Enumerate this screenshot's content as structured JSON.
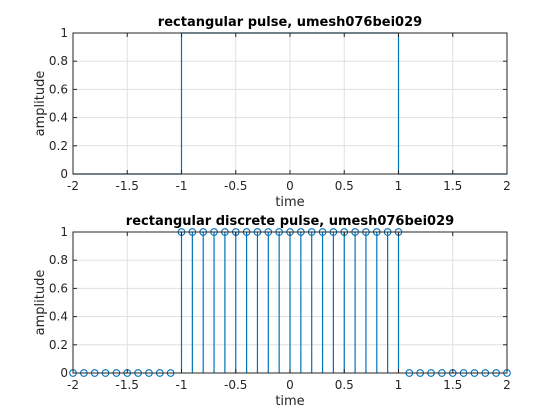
{
  "chart_data": [
    {
      "type": "line",
      "title": "rectangular pulse, umesh076bei029",
      "xlabel": "time",
      "ylabel": "amplitude",
      "xlim": [
        -2,
        2
      ],
      "ylim": [
        0,
        1
      ],
      "grid": true,
      "xticks": [
        -2,
        -1.5,
        -1,
        -0.5,
        0,
        0.5,
        1,
        1.5,
        2
      ],
      "xtick_labels": [
        "-2",
        "-1.5",
        "-1",
        "-0.5",
        "0",
        "0.5",
        "1",
        "1.5",
        "2"
      ],
      "yticks": [
        0,
        0.2,
        0.4,
        0.6,
        0.8,
        1
      ],
      "ytick_labels": [
        "0",
        "0.2",
        "0.4",
        "0.6",
        "0.8",
        "1"
      ],
      "color": "#0072bd",
      "series": [
        {
          "x": [
            -2,
            -1,
            -1,
            1,
            1,
            2
          ],
          "y": [
            0,
            0,
            1,
            1,
            0,
            0
          ]
        }
      ]
    },
    {
      "type": "stem",
      "title": "rectangular discrete pulse, umesh076bei029",
      "xlabel": "time",
      "ylabel": "amplitude",
      "xlim": [
        -2,
        2
      ],
      "ylim": [
        0,
        1
      ],
      "grid": true,
      "xticks": [
        -2,
        -1.5,
        -1,
        -0.5,
        0,
        0.5,
        1,
        1.5,
        2
      ],
      "xtick_labels": [
        "-2",
        "-1.5",
        "-1",
        "-0.5",
        "0",
        "0.5",
        "1",
        "1.5",
        "2"
      ],
      "yticks": [
        0,
        0.2,
        0.4,
        0.6,
        0.8,
        1
      ],
      "ytick_labels": [
        "0",
        "0.2",
        "0.4",
        "0.6",
        "0.8",
        "1"
      ],
      "color": "#0072bd",
      "marker": "circle",
      "series": [
        {
          "x": [
            -2,
            -1.9,
            -1.8,
            -1.7,
            -1.6,
            -1.5,
            -1.4,
            -1.3,
            -1.2,
            -1.1,
            -1,
            -0.9,
            -0.8,
            -0.7,
            -0.6,
            -0.5,
            -0.4,
            -0.3,
            -0.2,
            -0.1,
            0,
            0.1,
            0.2,
            0.3,
            0.4,
            0.5,
            0.6,
            0.7,
            0.8,
            0.9,
            1,
            1.1,
            1.2,
            1.3,
            1.4,
            1.5,
            1.6,
            1.7,
            1.8,
            1.9,
            2
          ],
          "y": [
            0,
            0,
            0,
            0,
            0,
            0,
            0,
            0,
            0,
            0,
            1,
            1,
            1,
            1,
            1,
            1,
            1,
            1,
            1,
            1,
            1,
            1,
            1,
            1,
            1,
            1,
            1,
            1,
            1,
            1,
            1,
            0,
            0,
            0,
            0,
            0,
            0,
            0,
            0,
            0,
            0
          ]
        }
      ]
    }
  ]
}
